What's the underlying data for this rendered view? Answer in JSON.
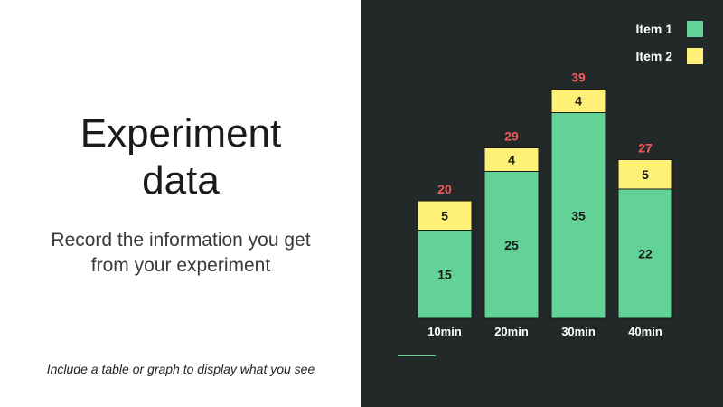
{
  "slide": {
    "title_line1": "Experiment",
    "title_line2": "data",
    "subtitle_line1": "Record the information you get",
    "subtitle_line2": "from your experiment",
    "note": "Include a table or graph to display what you see"
  },
  "colors": {
    "panel_bg": "#232829",
    "item1": "#63d297",
    "item2": "#fff176",
    "total_label": "#f05a5a",
    "axis_text": "#ffffff",
    "accent_line": "#63d297"
  },
  "chart_data": {
    "type": "bar",
    "stacked": true,
    "categories": [
      "10min",
      "20min",
      "30min",
      "40min"
    ],
    "series": [
      {
        "name": "Item 1",
        "values": [
          15,
          25,
          35,
          22
        ]
      },
      {
        "name": "Item 2",
        "values": [
          5,
          4,
          4,
          5
        ]
      }
    ],
    "totals": [
      20,
      29,
      39,
      27
    ],
    "ylim": [
      0,
      39
    ],
    "legend": "top-right",
    "grid": false
  }
}
